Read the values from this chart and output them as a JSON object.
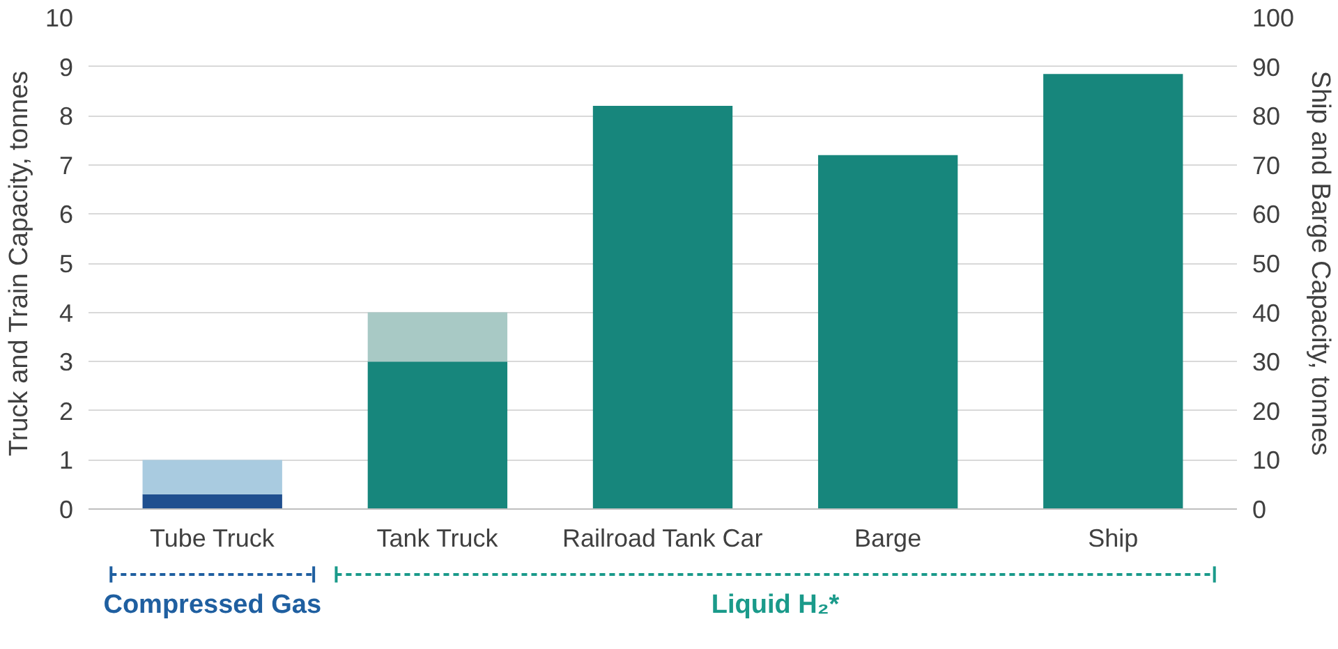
{
  "chart_data": {
    "type": "bar",
    "stacked": true,
    "categories": [
      "Tube Truck",
      "Tank Truck",
      "Railroad Tank Car",
      "Barge",
      "Ship"
    ],
    "ylabel": "Truck and Train Capacity, tonnes",
    "y2label": "Ship and Barge Capacity, tonnes",
    "ylim": [
      0,
      10
    ],
    "yticks": [
      0,
      1,
      2,
      3,
      4,
      5,
      6,
      7,
      8,
      9,
      10
    ],
    "y2lim": [
      0,
      100
    ],
    "y2ticks": [
      0,
      10,
      20,
      30,
      40,
      50,
      60,
      70,
      80,
      90,
      100
    ],
    "grid": "y",
    "series": [
      {
        "colors": [
          "#1f4f8f",
          "#17867c",
          "#17867c",
          null,
          null
        ],
        "values": [
          0.3,
          3,
          8.2,
          null,
          null
        ]
      },
      {
        "colors": [
          "#a9cbe0",
          "#a8c9c5",
          null,
          null,
          null
        ],
        "values": [
          0.7,
          1,
          null,
          null,
          null
        ]
      },
      {
        "axis": "y2",
        "colors": [
          null,
          null,
          null,
          "#17867c",
          "#17867c"
        ],
        "values": [
          null,
          null,
          null,
          72,
          88.5
        ]
      }
    ],
    "annotations": [
      "Compressed Gas",
      "Liquid H₂*"
    ]
  }
}
